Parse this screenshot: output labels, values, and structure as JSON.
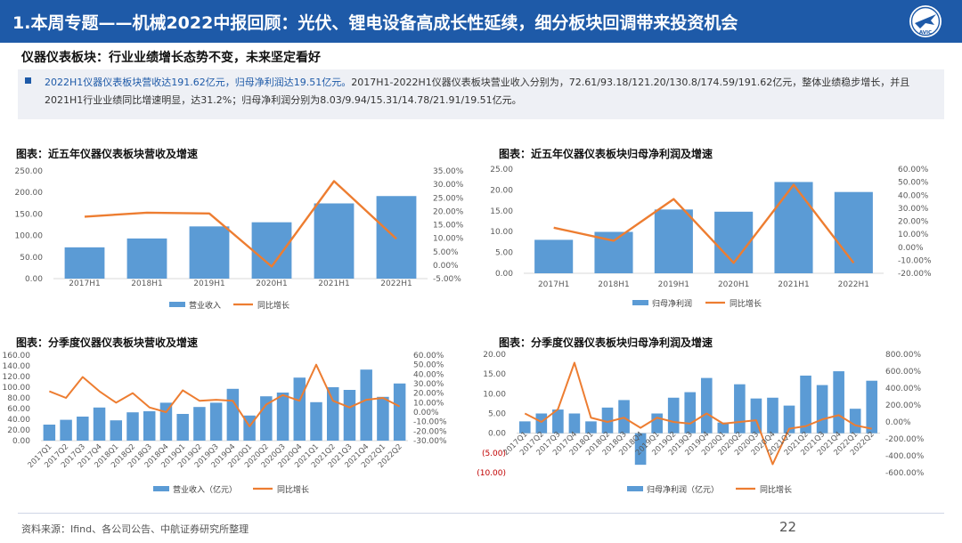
{
  "header": {
    "title": "1.本周专题——机械2022中报回顾：光伏、锂电设备高成长性延续，细分板块回调带来投资机会",
    "logo_text": "AVIC"
  },
  "subtitle": "仪器仪表板块：行业业绩增长态势不变，未来坚定看好",
  "summary": {
    "highlight": "2022H1仪器仪表板块营收达191.62亿元，归母净利润达19.51亿元。",
    "text": "2017H1-2022H1仪器仪表板块营业收入分别为，72.61/93.18/121.20/130.8/174.59/191.62亿元，整体业绩稳步增长，并且2021H1行业业绩同比增速明显，达31.2%；归母净利润分别为8.03/9.94/15.31/14.78/21.91/19.51亿元。"
  },
  "colors": {
    "bar": "#5b9bd5",
    "line": "#ed7d31",
    "brand": "#1e5aa8"
  },
  "chart_data": [
    {
      "type": "bar",
      "title": "图表：近五年仪器仪表板块营收及增速",
      "categories": [
        "2017H1",
        "2018H1",
        "2019H1",
        "2020H1",
        "2021H1",
        "2022H1"
      ],
      "series": [
        {
          "name": "营业收入",
          "type": "bar",
          "axis": "left",
          "values": [
            72.61,
            93.18,
            121.2,
            130.8,
            174.59,
            191.62
          ]
        },
        {
          "name": "同比增长",
          "type": "line",
          "axis": "right",
          "values": [
            18.0,
            19.5,
            19.2,
            -0.5,
            31.2,
            9.8
          ]
        }
      ],
      "ylim": [
        0,
        250
      ],
      "yticks": [
        0,
        50,
        100,
        150,
        200,
        250
      ],
      "ytick_labels": [
        "0.00",
        "50.00",
        "100.00",
        "150.00",
        "200.00",
        "250.00"
      ],
      "y2lim": [
        -5,
        35
      ],
      "y2ticks": [
        -5,
        0,
        5,
        10,
        15,
        20,
        25,
        30,
        35
      ],
      "y2tick_labels": [
        "-5.00%",
        "0.00%",
        "5.00%",
        "10.00%",
        "15.00%",
        "20.00%",
        "25.00%",
        "30.00%",
        "35.00%"
      ],
      "legend": "bottom"
    },
    {
      "type": "bar",
      "title": "图表：近五年仪器仪表板块归母净利润及增速",
      "categories": [
        "2017H1",
        "2018H1",
        "2019H1",
        "2020H1",
        "2021H1",
        "2022H1"
      ],
      "series": [
        {
          "name": "归母净利润",
          "type": "bar",
          "axis": "left",
          "values": [
            8.03,
            9.94,
            15.31,
            14.78,
            21.91,
            19.51
          ]
        },
        {
          "name": "同比增长",
          "type": "line",
          "axis": "right",
          "values": [
            15.0,
            5.0,
            37.0,
            -12.0,
            48.0,
            -12.0
          ]
        }
      ],
      "ylim": [
        0,
        25
      ],
      "yticks": [
        0,
        5,
        10,
        15,
        20,
        25
      ],
      "ytick_labels": [
        "0.00",
        "5.00",
        "10.00",
        "15.00",
        "20.00",
        "25.00"
      ],
      "y2lim": [
        -20,
        60
      ],
      "y2ticks": [
        -20,
        -10,
        0,
        10,
        20,
        30,
        40,
        50,
        60
      ],
      "y2tick_labels": [
        "-20.00%",
        "-10.00%",
        "0.00%",
        "10.00%",
        "20.00%",
        "30.00%",
        "40.00%",
        "50.00%",
        "60.00%"
      ],
      "legend": "bottom"
    },
    {
      "type": "bar",
      "title": "图表：分季度仪器仪表板块营收及增速",
      "categories": [
        "2017Q1",
        "2017Q2",
        "2017Q3",
        "2017Q4",
        "2018Q1",
        "2018Q2",
        "2018Q3",
        "2018Q4",
        "2019Q1",
        "2019Q2",
        "2019Q3",
        "2019Q4",
        "2020Q1",
        "2020Q2",
        "2020Q3",
        "2020Q4",
        "2021Q1",
        "2021Q2",
        "2021Q3",
        "2021Q4",
        "2022Q1",
        "2022Q2"
      ],
      "series": [
        {
          "name": "营业收入（亿元）",
          "type": "bar",
          "axis": "left",
          "values": [
            30,
            39,
            45,
            62,
            38,
            53,
            55,
            71,
            50,
            63,
            71,
            97,
            47,
            83,
            90,
            118,
            72,
            100,
            95,
            133,
            82,
            107
          ]
        },
        {
          "name": "同比增长",
          "type": "line",
          "axis": "right",
          "values": [
            22,
            15,
            37,
            22,
            10,
            20,
            5,
            0,
            23,
            12,
            13,
            12,
            -15,
            8,
            18,
            12,
            50,
            12,
            5,
            13,
            15,
            6
          ]
        }
      ],
      "ylim": [
        0,
        160
      ],
      "yticks": [
        0,
        20,
        40,
        60,
        80,
        100,
        120,
        140,
        160
      ],
      "ytick_labels": [
        "0.00",
        "20.00",
        "40.00",
        "60.00",
        "80.00",
        "100.00",
        "120.00",
        "140.00",
        "160.00"
      ],
      "y2lim": [
        -30,
        60
      ],
      "y2ticks": [
        -30,
        -20,
        -10,
        0,
        10,
        20,
        30,
        40,
        50,
        60
      ],
      "y2tick_labels": [
        "-30.00%",
        "-20.00%",
        "-10.00%",
        "0.00%",
        "10.00%",
        "20.00%",
        "30.00%",
        "40.00%",
        "50.00%",
        "60.00%"
      ],
      "legend": "bottom"
    },
    {
      "type": "bar",
      "title": "图表：分季度仪器仪表板块归母净利润及增速",
      "categories": [
        "2017Q1",
        "2017Q2",
        "2017Q3",
        "2017Q4",
        "2018Q1",
        "2018Q2",
        "2018Q3",
        "2018Q4",
        "2019Q1",
        "2019Q2",
        "2019Q3",
        "2019Q4",
        "2020Q1",
        "2020Q2",
        "2020Q3",
        "2020Q4",
        "2021Q1",
        "2021Q2",
        "2021Q3",
        "2021Q4",
        "2022Q1",
        "2022Q2"
      ],
      "series": [
        {
          "name": "归母净利润（亿元）",
          "type": "bar",
          "axis": "left",
          "values": [
            3.0,
            5.0,
            6.0,
            5.0,
            3.0,
            6.5,
            8.4,
            -8.0,
            5.0,
            9.0,
            10.4,
            14.0,
            2.7,
            12.4,
            8.8,
            9.0,
            7.0,
            14.6,
            12.2,
            15.7,
            6.2,
            13.3
          ]
        },
        {
          "name": "同比增长",
          "type": "line",
          "axis": "right",
          "values": [
            100,
            0,
            150,
            700,
            50,
            0,
            50,
            -70,
            50,
            0,
            -20,
            100,
            -20,
            0,
            20,
            -500,
            -80,
            -50,
            30,
            80,
            -40,
            -80
          ]
        }
      ],
      "ylim": [
        -10,
        20
      ],
      "yticks": [
        -10,
        -5,
        0,
        5,
        10,
        15,
        20
      ],
      "ytick_labels": [
        "(10.00)",
        "(5.00)",
        "0.00",
        "5.00",
        "10.00",
        "15.00",
        "20.00"
      ],
      "y2lim": [
        -600,
        800
      ],
      "y2ticks": [
        -600,
        -400,
        -200,
        0,
        200,
        400,
        600,
        800
      ],
      "y2tick_labels": [
        "-600.00%",
        "-400.00%",
        "-200.00%",
        "0.00%",
        "200.00%",
        "400.00%",
        "600.00%",
        "800.00%"
      ],
      "legend": "bottom"
    }
  ],
  "footer": {
    "source": "资料来源：Ifind、各公司公告、中航证券研究所整理",
    "page": "22"
  }
}
